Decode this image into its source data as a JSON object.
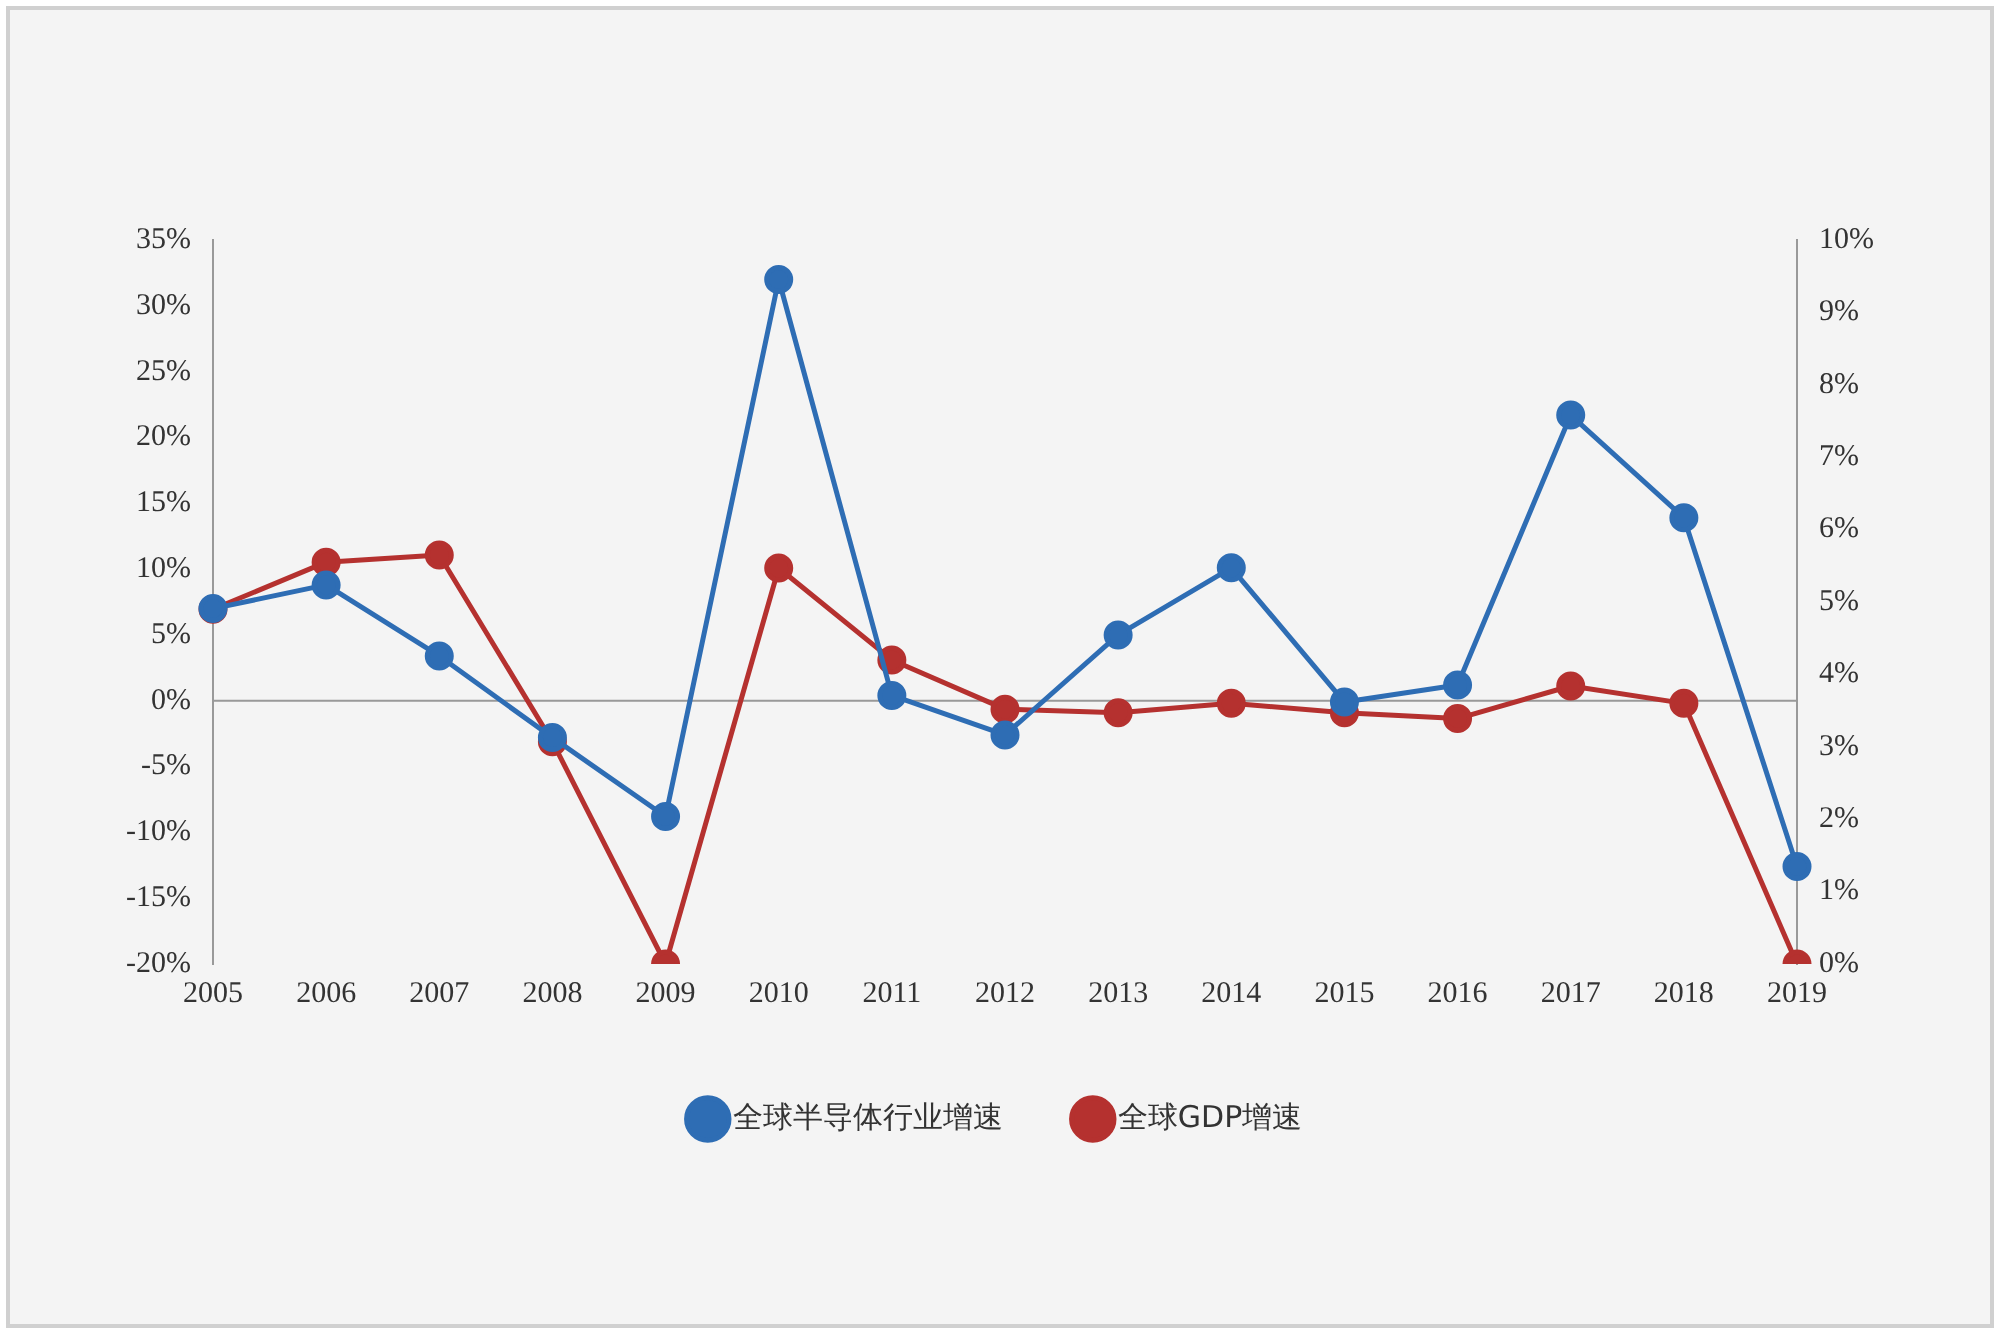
{
  "chart_data": {
    "type": "line",
    "categories": [
      "2005",
      "2006",
      "2007",
      "2008",
      "2009",
      "2010",
      "2011",
      "2012",
      "2013",
      "2014",
      "2015",
      "2016",
      "2017",
      "2018",
      "2019"
    ],
    "series": [
      {
        "name": "全球半导体行业增速",
        "color": "#2e6db4",
        "values": [
          7.0,
          8.8,
          3.4,
          -2.8,
          -8.8,
          32.0,
          0.4,
          -2.6,
          5.0,
          10.1,
          -0.1,
          1.2,
          21.7,
          13.9,
          -12.6
        ]
      },
      {
        "name": "全球GDP增速",
        "color": "#b5312f",
        "axis": "y2",
        "values": [
          4.9,
          5.55,
          5.65,
          3.07,
          0.0,
          5.47,
          4.2,
          3.52,
          3.47,
          3.6,
          3.47,
          3.39,
          3.84,
          3.6,
          0.0
        ]
      }
    ],
    "ylim": [
      -20,
      35
    ],
    "yticks": [
      {
        "value": -20,
        "label": "-20%"
      },
      {
        "value": -15,
        "label": "-15%"
      },
      {
        "value": -10,
        "label": "-10%"
      },
      {
        "value": -5,
        "label": "-5%"
      },
      {
        "value": 0,
        "label": "0%"
      },
      {
        "value": 5,
        "label": "5%"
      },
      {
        "value": 10,
        "label": "10%"
      },
      {
        "value": 15,
        "label": "15%"
      },
      {
        "value": 20,
        "label": "20%"
      },
      {
        "value": 25,
        "label": "25%"
      },
      {
        "value": 30,
        "label": "30%"
      },
      {
        "value": 35,
        "label": "35%"
      }
    ],
    "y2lim": [
      0,
      10
    ],
    "y2ticks": [
      {
        "value": 0,
        "label": "0%"
      },
      {
        "value": 1,
        "label": "1%"
      },
      {
        "value": 2,
        "label": "2%"
      },
      {
        "value": 3,
        "label": "3%"
      },
      {
        "value": 4,
        "label": "4%"
      },
      {
        "value": 5,
        "label": "5%"
      },
      {
        "value": 6,
        "label": "6%"
      },
      {
        "value": 7,
        "label": "7%"
      },
      {
        "value": 8,
        "label": "8%"
      },
      {
        "value": 9,
        "label": "9%"
      },
      {
        "value": 10,
        "label": "10%"
      }
    ],
    "ref_lines": [
      {
        "axis": "y",
        "value": 0,
        "color": "#999999"
      }
    ],
    "legend": "bottom",
    "grid": false,
    "marker": "circle",
    "line_style": "solid"
  }
}
